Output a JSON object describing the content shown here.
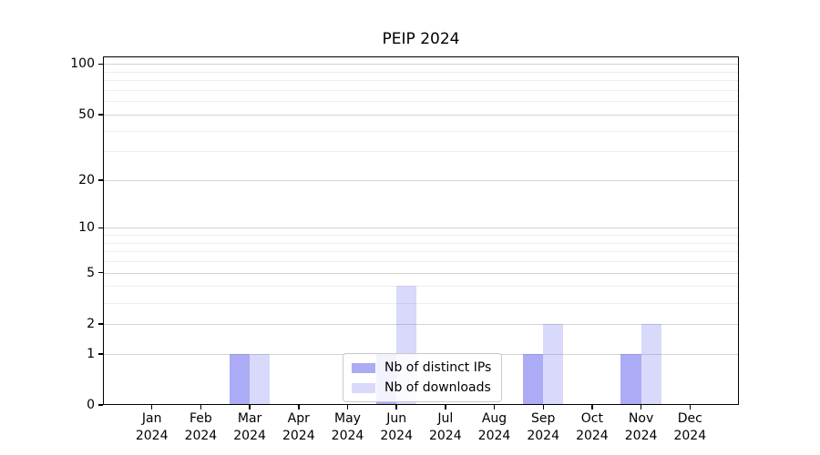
{
  "chart_data": {
    "type": "bar",
    "title": "PEIP 2024",
    "categories": [
      "Jan",
      "Feb",
      "Mar",
      "Apr",
      "May",
      "Jun",
      "Jul",
      "Aug",
      "Sep",
      "Oct",
      "Nov",
      "Dec"
    ],
    "year_label": "2024",
    "series": [
      {
        "name": "Nb of distinct IPs",
        "color": "rgba(102,102,238,0.55)",
        "values": [
          0,
          0,
          1,
          0,
          0,
          1,
          0,
          0,
          1,
          0,
          1,
          0
        ]
      },
      {
        "name": "Nb of downloads",
        "color": "rgba(102,102,238,0.25)",
        "values": [
          0,
          0,
          1,
          0,
          0,
          4,
          0,
          0,
          2,
          0,
          2,
          0
        ]
      }
    ],
    "yscale": "log1p",
    "ylim": [
      0,
      111
    ],
    "y_ticks": [
      0,
      1,
      2,
      5,
      10,
      20,
      50,
      100
    ],
    "y_minor_ticks": [
      3,
      4,
      6,
      7,
      8,
      9,
      30,
      40,
      60,
      70,
      80,
      90
    ],
    "xlabel": "",
    "ylabel": "",
    "grid": "horizontal",
    "legend_position": "lower-center-inside",
    "colors": {
      "bar_base": "#6666ee",
      "major_grid": "#d4d4d4",
      "minor_grid": "#ededed",
      "axis": "#000000",
      "background": "#ffffff"
    }
  }
}
